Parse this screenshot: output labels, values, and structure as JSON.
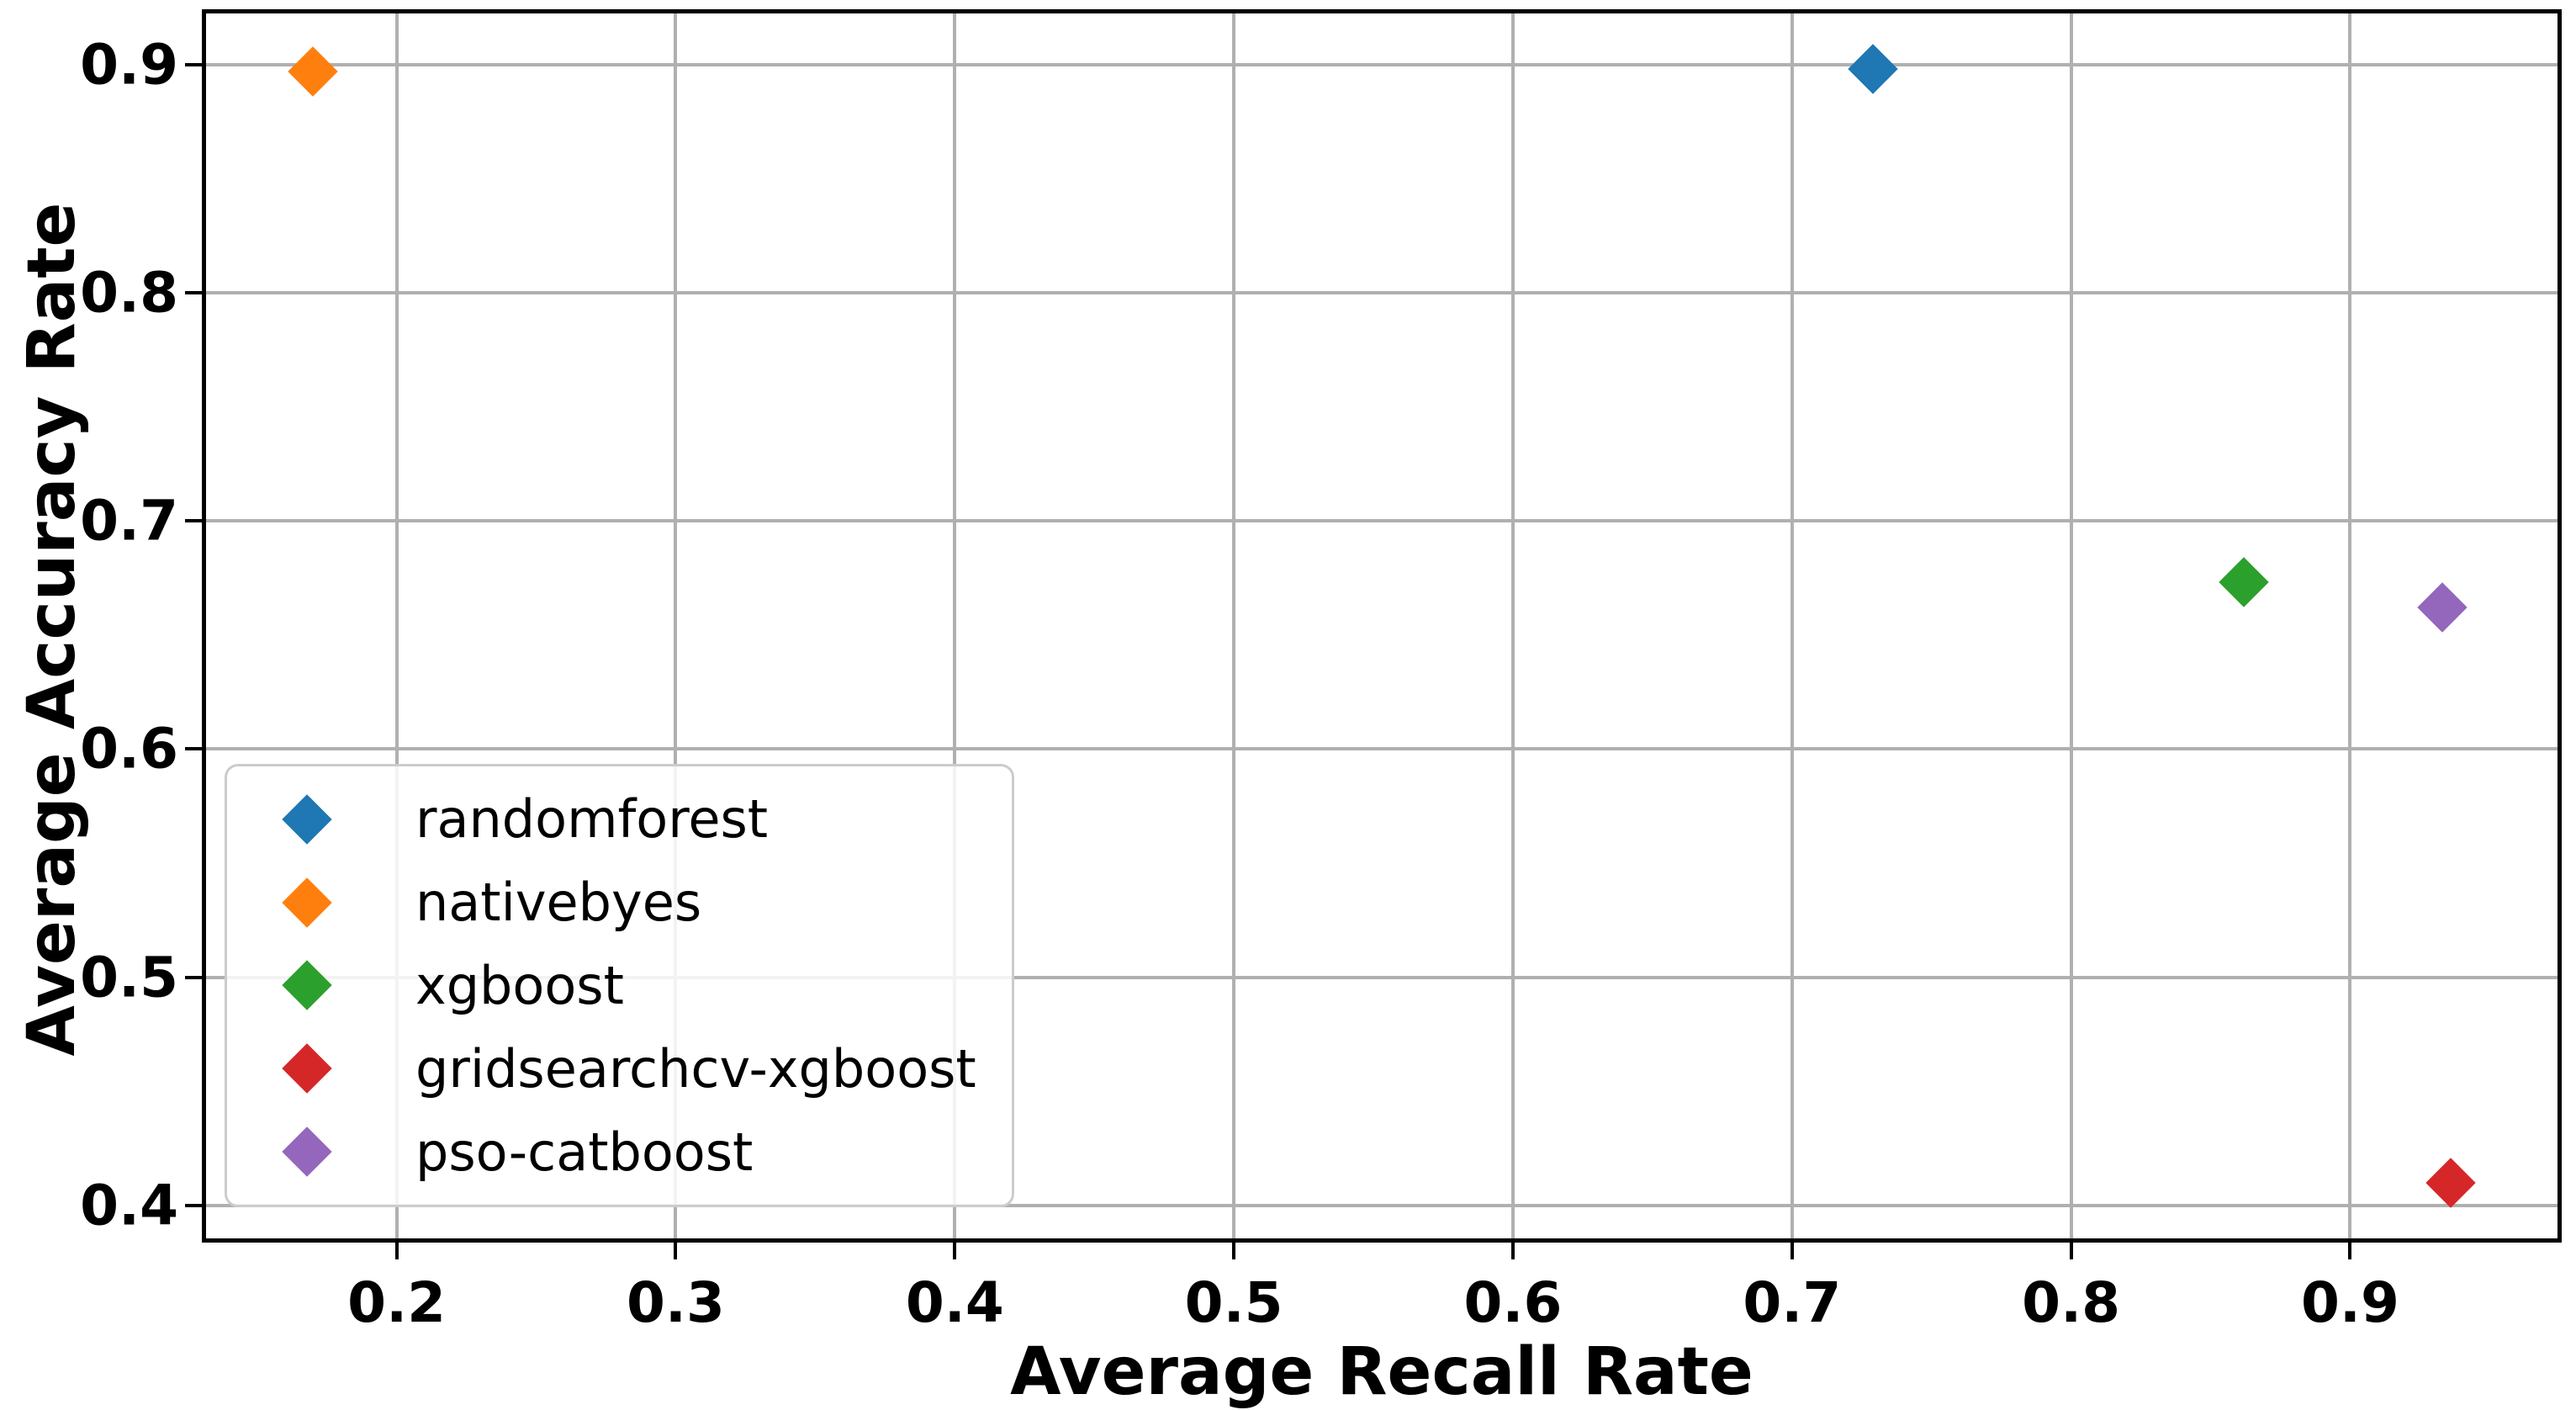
{
  "chart_data": {
    "type": "scatter",
    "title": "",
    "xlabel": "Average Recall Rate",
    "ylabel": "Average Accuracy Rate",
    "xlim": [
      0.1317,
      0.9743
    ],
    "ylim": [
      0.3856,
      0.9224
    ],
    "xticks": [
      0.2,
      0.3,
      0.4,
      0.5,
      0.6,
      0.7,
      0.8,
      0.9
    ],
    "yticks": [
      0.4,
      0.5,
      0.6,
      0.7,
      0.8,
      0.9
    ],
    "xtick_labels": [
      "0.2",
      "0.3",
      "0.4",
      "0.5",
      "0.6",
      "0.7",
      "0.8",
      "0.9"
    ],
    "ytick_labels": [
      "0.4",
      "0.5",
      "0.6",
      "0.7",
      "0.8",
      "0.9"
    ],
    "grid": true,
    "grid_color": "#b0b0b0",
    "marker": "diamond",
    "legend_position": "lower left",
    "legend_border_color": "#cccccc",
    "series": [
      {
        "name": "randomforest",
        "color": "#1f77b4",
        "points": [
          [
            0.729,
            0.898
          ]
        ]
      },
      {
        "name": "nativebyes",
        "color": "#ff7f0e",
        "points": [
          [
            0.17,
            0.897
          ]
        ]
      },
      {
        "name": "xgboost",
        "color": "#2ca02c",
        "points": [
          [
            0.862,
            0.673
          ]
        ]
      },
      {
        "name": "gridsearchcv-xgboost",
        "color": "#d62728",
        "points": [
          [
            0.936,
            0.41
          ]
        ]
      },
      {
        "name": "pso-catboost",
        "color": "#9467bd",
        "points": [
          [
            0.933,
            0.662
          ]
        ]
      }
    ]
  }
}
